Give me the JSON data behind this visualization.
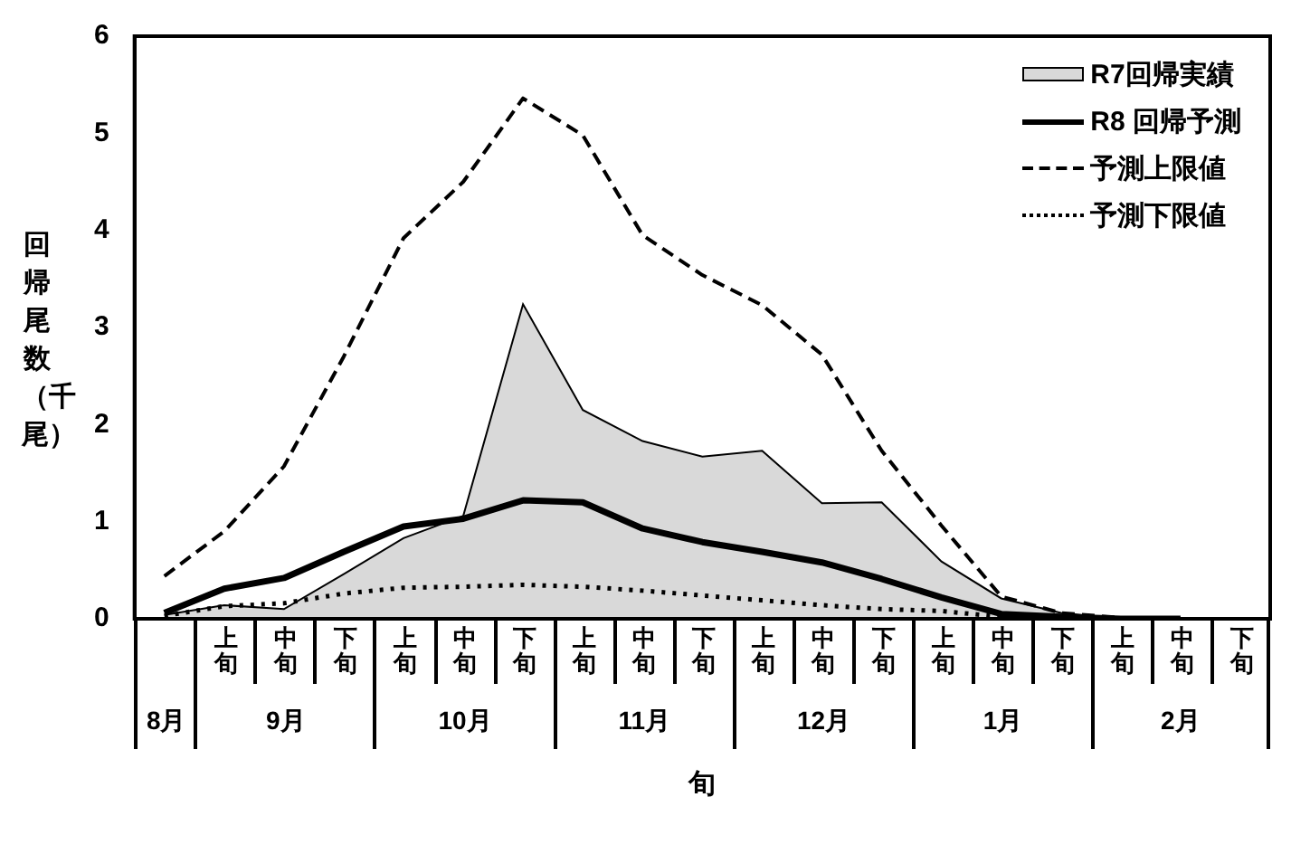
{
  "chart_data": {
    "type": "line",
    "xlabel": "旬",
    "ylabel": "回帰尾数（千尾）",
    "categories": [
      null,
      "上旬",
      "中旬",
      "下旬",
      "上旬",
      "中旬",
      "下旬",
      "上旬",
      "中旬",
      "下旬",
      "上旬",
      "中旬",
      "下旬",
      "上旬",
      "中旬",
      "下旬",
      "上旬",
      "中旬",
      "下旬"
    ],
    "annotations": [
      "8月",
      "9月",
      "10月",
      "11月",
      "12月",
      "1月",
      "2月"
    ],
    "series": [
      {
        "name": "R7回帰実績",
        "type": "area",
        "color": "#d9d9d9",
        "values": [
          0.04,
          0.14,
          0.1,
          0.46,
          0.83,
          1.06,
          3.24,
          2.15,
          1.83,
          1.67,
          1.73,
          1.19,
          1.2,
          0.59,
          0.21,
          0.06,
          0,
          0,
          null
        ]
      },
      {
        "name": "R8 回帰予測",
        "color": "#000000",
        "line_style": "solid",
        "values": [
          0.06,
          0.31,
          0.42,
          0.69,
          0.95,
          1.03,
          1.22,
          1.2,
          0.93,
          0.79,
          0.69,
          0.58,
          0.41,
          0.22,
          0.05,
          0.02,
          0,
          0,
          null
        ]
      },
      {
        "name": "予測上限値",
        "color": "#000000",
        "line_style": "dashed",
        "values": [
          0.44,
          0.9,
          1.57,
          2.7,
          3.92,
          4.5,
          5.36,
          4.98,
          3.95,
          3.54,
          3.23,
          2.72,
          1.73,
          0.96,
          0.23,
          0.06,
          0.01,
          0,
          null
        ]
      },
      {
        "name": "予測下限値",
        "color": "#000000",
        "line_style": "dotted",
        "values": [
          0.03,
          0.13,
          0.16,
          0.26,
          0.32,
          0.33,
          0.35,
          0.33,
          0.29,
          0.24,
          0.19,
          0.14,
          0.1,
          0.08,
          0.02,
          0,
          0,
          null,
          null
        ]
      }
    ],
    "ylim": [
      0,
      6
    ],
    "yticks": [
      0,
      1,
      2,
      3,
      4,
      5,
      6
    ],
    "grid": false,
    "legend": "top right",
    "marker": "none"
  }
}
